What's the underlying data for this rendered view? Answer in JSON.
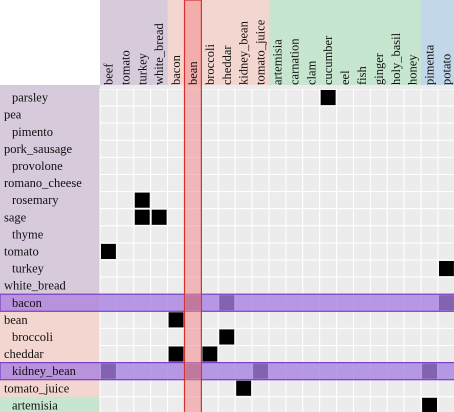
{
  "colors": {
    "group_purple": "#d6cadb",
    "group_pink": "#f4d6d0",
    "group_green": "#c7e6d0",
    "group_blue": "#c2d7ea",
    "cell_bg": "#ececec",
    "cell_line": "#ffffff",
    "filled": "#000000",
    "highlight_row": "#a77fe0",
    "highlight_row_border": "#7a3fc4",
    "highlight_col": "#f28c8c",
    "highlight_col_border": "#d83030"
  },
  "columns": [
    {
      "label": "beef",
      "group": "group_purple"
    },
    {
      "label": "tomato",
      "group": "group_purple"
    },
    {
      "label": "turkey",
      "group": "group_purple"
    },
    {
      "label": "white_bread",
      "group": "group_purple"
    },
    {
      "label": "bacon",
      "group": "group_pink"
    },
    {
      "label": "bean",
      "group": "group_pink"
    },
    {
      "label": "broccoli",
      "group": "group_pink"
    },
    {
      "label": "cheddar",
      "group": "group_pink"
    },
    {
      "label": "kidney_bean",
      "group": "group_pink"
    },
    {
      "label": "tomato_juice",
      "group": "group_pink"
    },
    {
      "label": "artemisia",
      "group": "group_green"
    },
    {
      "label": "carnation",
      "group": "group_green"
    },
    {
      "label": "clam",
      "group": "group_green"
    },
    {
      "label": "cucumber",
      "group": "group_green"
    },
    {
      "label": "eel",
      "group": "group_green"
    },
    {
      "label": "fish",
      "group": "group_green"
    },
    {
      "label": "ginger",
      "group": "group_green"
    },
    {
      "label": "holy_basil",
      "group": "group_green"
    },
    {
      "label": "honey",
      "group": "group_green"
    },
    {
      "label": "pimenta",
      "group": "group_blue"
    },
    {
      "label": "potato",
      "group": "group_blue"
    }
  ],
  "rows": [
    {
      "label": "parsley",
      "group": "group_purple",
      "indent": true
    },
    {
      "label": "pea",
      "group": "group_purple",
      "indent": false
    },
    {
      "label": "pimento",
      "group": "group_purple",
      "indent": true
    },
    {
      "label": "pork_sausage",
      "group": "group_purple",
      "indent": false
    },
    {
      "label": "provolone",
      "group": "group_purple",
      "indent": true
    },
    {
      "label": "romano_cheese",
      "group": "group_purple",
      "indent": false
    },
    {
      "label": "rosemary",
      "group": "group_purple",
      "indent": true
    },
    {
      "label": "sage",
      "group": "group_purple",
      "indent": false
    },
    {
      "label": "thyme",
      "group": "group_purple",
      "indent": true
    },
    {
      "label": "tomato",
      "group": "group_purple",
      "indent": false
    },
    {
      "label": "turkey",
      "group": "group_purple",
      "indent": true
    },
    {
      "label": "white_bread",
      "group": "group_purple",
      "indent": false
    },
    {
      "label": "bacon",
      "group": "group_pink",
      "indent": true
    },
    {
      "label": "bean",
      "group": "group_pink",
      "indent": false
    },
    {
      "label": "broccoli",
      "group": "group_pink",
      "indent": true
    },
    {
      "label": "cheddar",
      "group": "group_pink",
      "indent": false
    },
    {
      "label": "kidney_bean",
      "group": "group_pink",
      "indent": true
    },
    {
      "label": "tomato_juice",
      "group": "group_pink",
      "indent": false
    },
    {
      "label": "artemisia",
      "group": "group_green",
      "indent": true
    }
  ],
  "filled_cells": [
    [
      0,
      13
    ],
    [
      6,
      2
    ],
    [
      7,
      2
    ],
    [
      7,
      3
    ],
    [
      9,
      0
    ],
    [
      10,
      20
    ],
    [
      12,
      5
    ],
    [
      12,
      7
    ],
    [
      12,
      20
    ],
    [
      13,
      4
    ],
    [
      14,
      7
    ],
    [
      15,
      4
    ],
    [
      15,
      6
    ],
    [
      16,
      0
    ],
    [
      16,
      5
    ],
    [
      16,
      9
    ],
    [
      16,
      19
    ],
    [
      17,
      8
    ],
    [
      18,
      19
    ]
  ],
  "highlighted_rows": [
    12,
    16
  ],
  "highlighted_cols": [
    5
  ]
}
